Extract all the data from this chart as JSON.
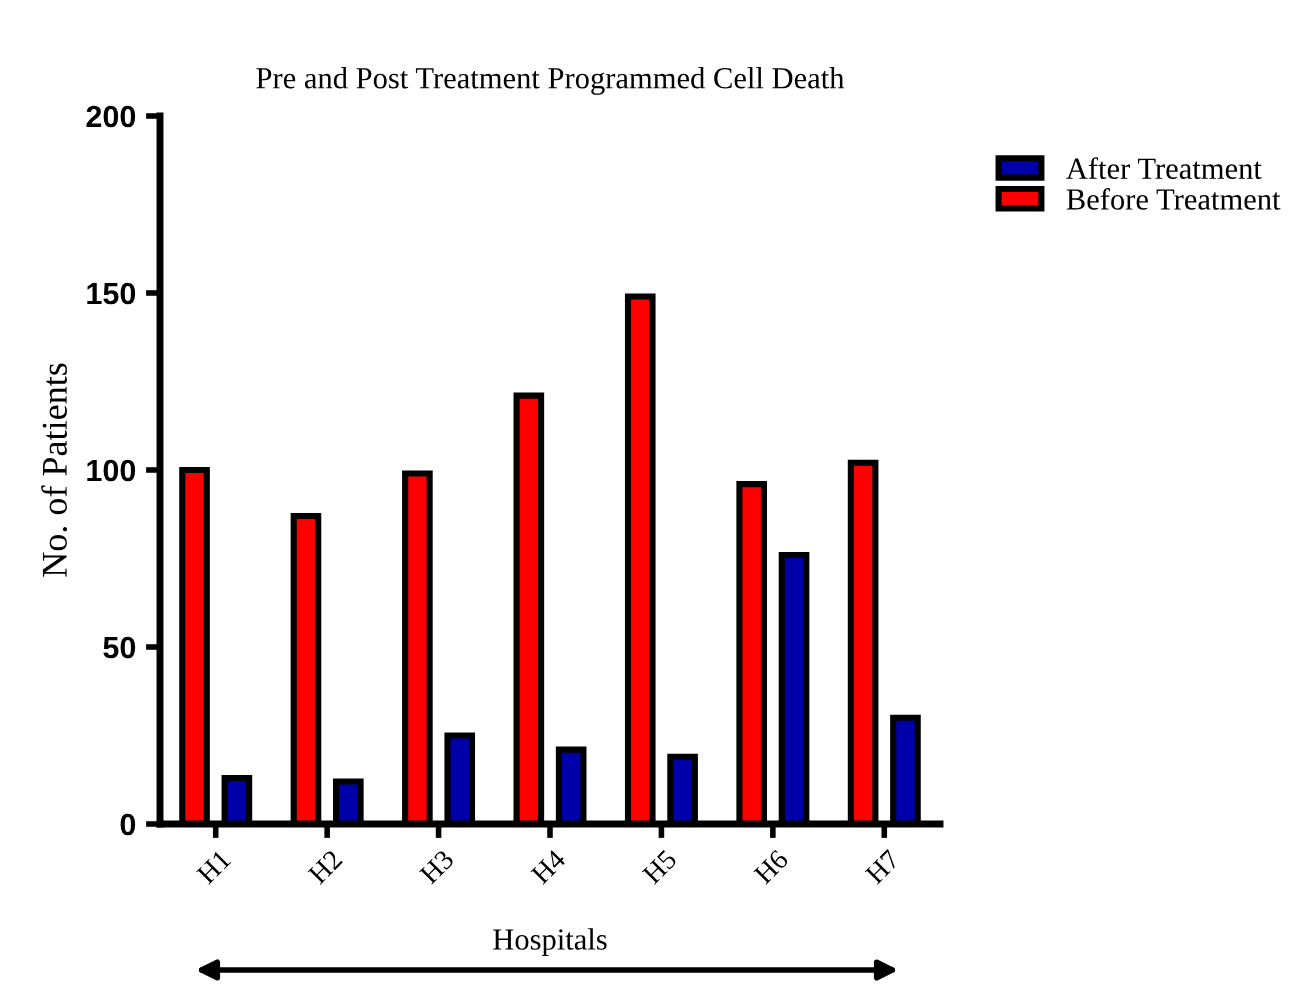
{
  "chart_data": {
    "type": "bar",
    "title": "Pre and Post Treatment Programmed Cell Death",
    "xlabel": "Hospitals",
    "ylabel": "No. of Patients",
    "categories": [
      "H1",
      "H2",
      "H3",
      "H4",
      "H5",
      "H6",
      "H7"
    ],
    "series": [
      {
        "name": "Before Treatment",
        "color": "#ff0000",
        "values": [
          100,
          87,
          99,
          121,
          149,
          96,
          102
        ]
      },
      {
        "name": "After Treatment",
        "color": "#0000aa",
        "values": [
          13,
          12,
          25,
          21,
          19,
          76,
          30
        ]
      }
    ],
    "ylim": [
      0,
      200
    ],
    "yticks": [
      0,
      50,
      100,
      150,
      200
    ],
    "grid": false,
    "legend": "top right"
  }
}
